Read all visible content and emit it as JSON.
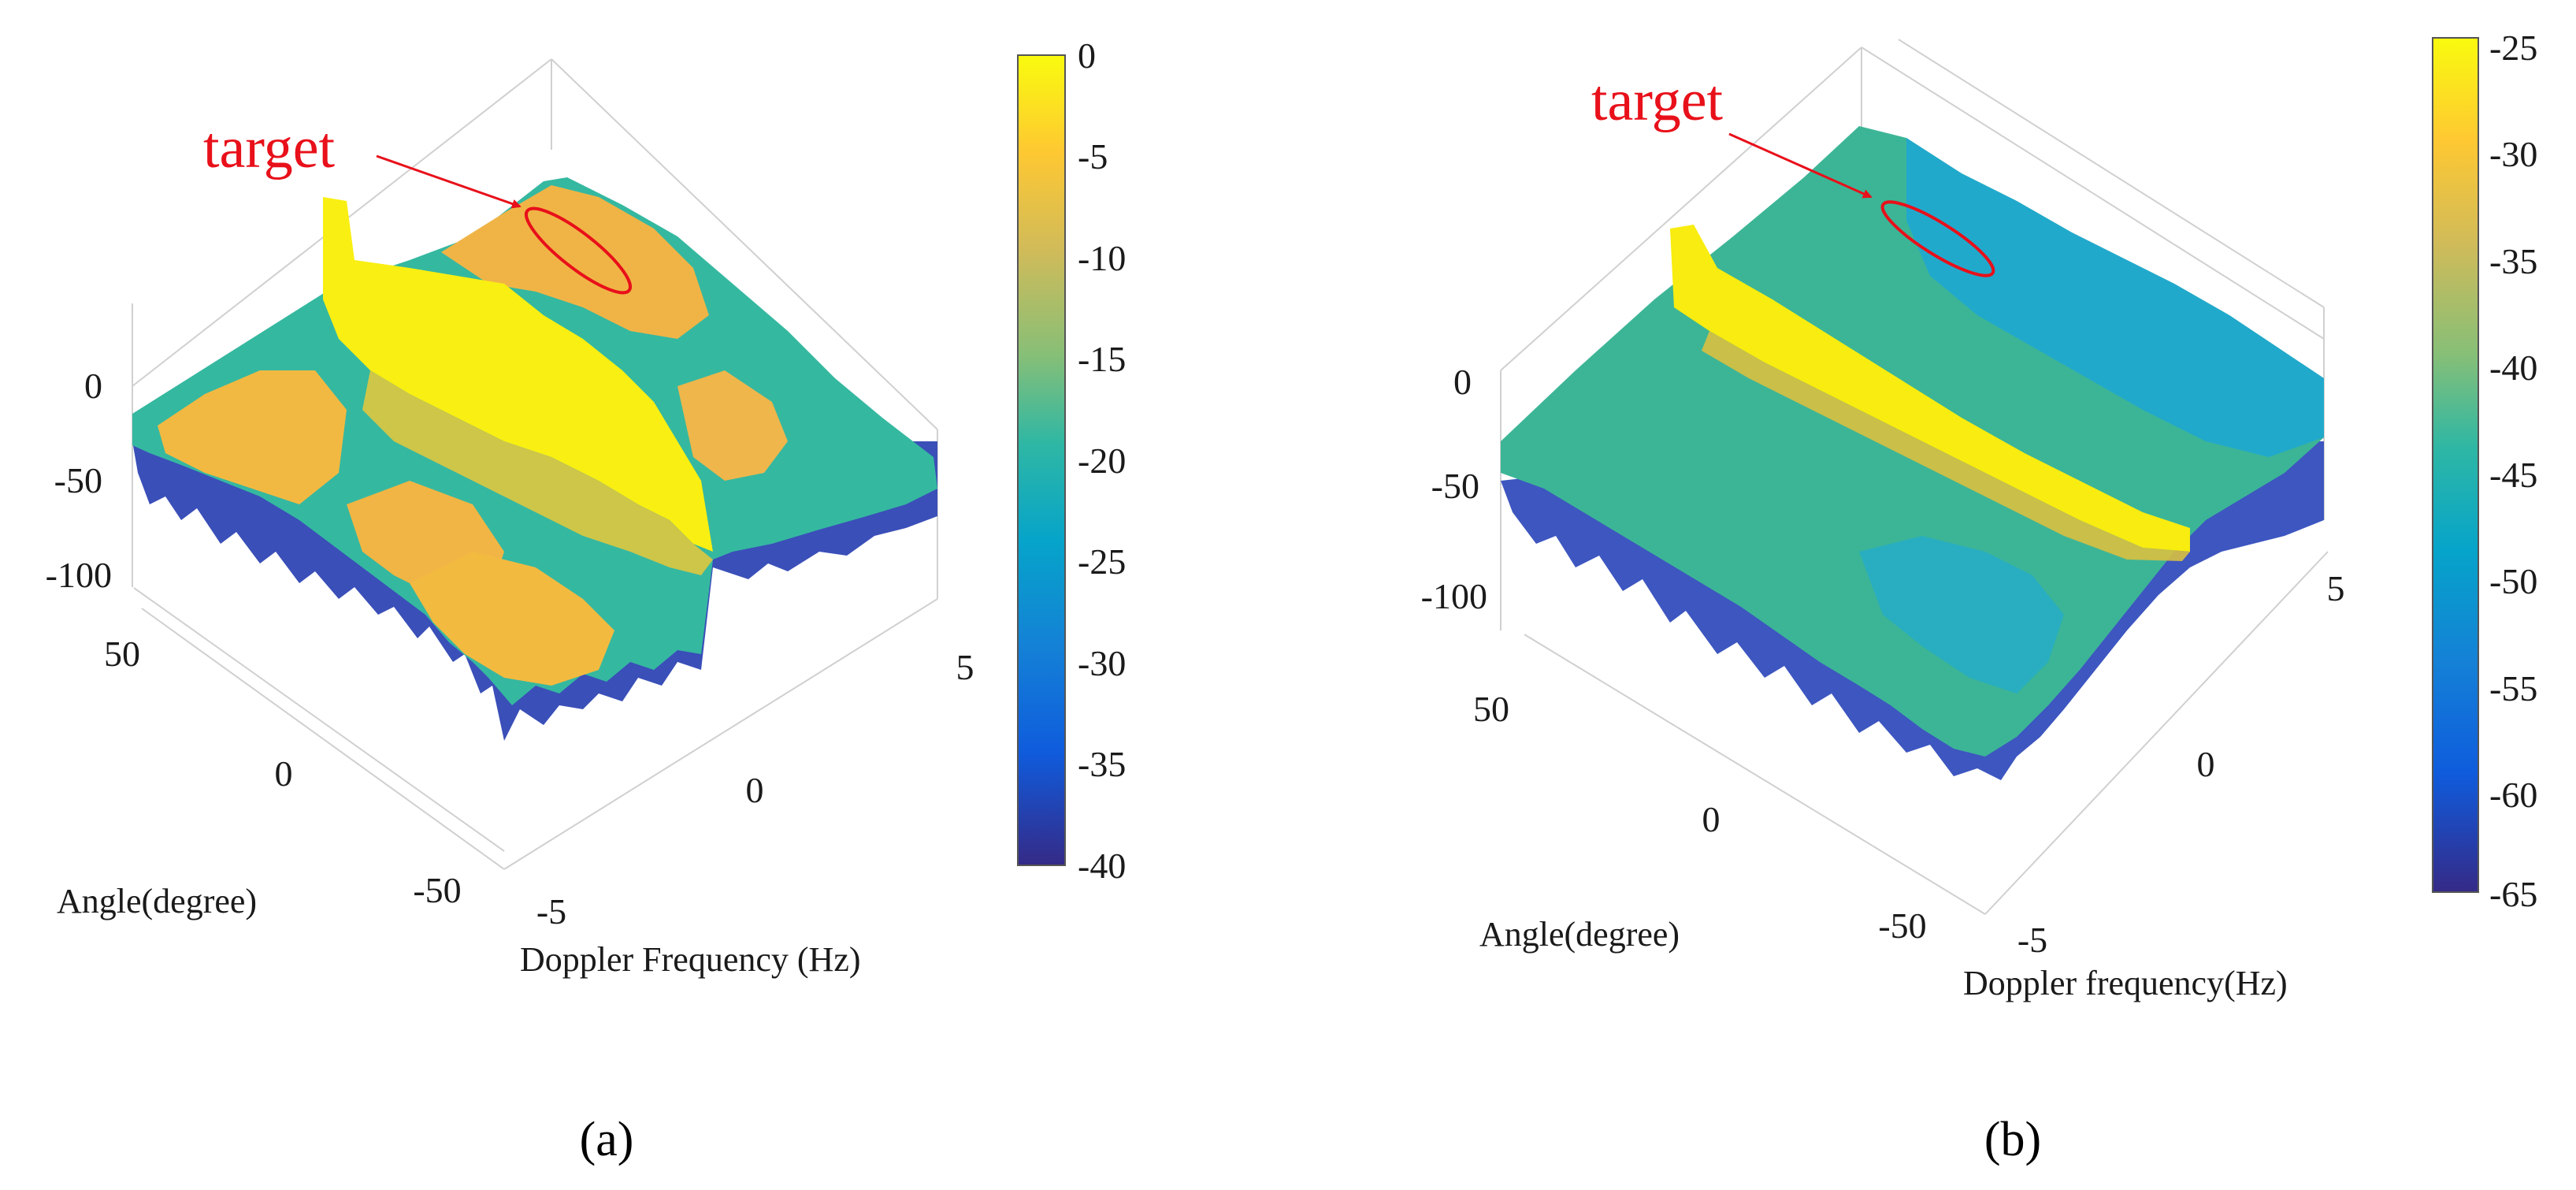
{
  "figure": {
    "panel_labels": [
      "(a)",
      "(b)"
    ]
  },
  "colors": {
    "parula": [
      "#352a87",
      "#0f5cdd",
      "#1481d6",
      "#06a4ca",
      "#2eb7a4",
      "#87bf77",
      "#d1bb59",
      "#fec832",
      "#f9fb0e"
    ],
    "annotation": "#e8101a"
  },
  "chart_data": [
    {
      "type": "surface",
      "panel": "(a)",
      "annotation": "target",
      "xlabel": "Doppler Frequency (Hz)",
      "ylabel": "Angle(degree)",
      "zlabel": "",
      "x_range": [
        -5,
        5
      ],
      "y_range": [
        -50,
        50
      ],
      "z_range": [
        -100,
        0
      ],
      "x_ticks": [
        "-5",
        "0",
        "5"
      ],
      "y_ticks": [
        "50",
        "0",
        "-50"
      ],
      "z_ticks": [
        "0",
        "-50",
        "-100"
      ],
      "colorbar": {
        "range": [
          -40,
          0
        ],
        "ticks": [
          "0",
          "-5",
          "-10",
          "-15",
          "-20",
          "-25",
          "-30",
          "-35",
          "-40"
        ]
      }
    },
    {
      "type": "surface",
      "panel": "(b)",
      "annotation": "target",
      "xlabel": "Doppler frequency(Hz)",
      "ylabel": "Angle(degree)",
      "zlabel": "",
      "x_range": [
        -5,
        5
      ],
      "y_range": [
        -50,
        50
      ],
      "z_range": [
        -100,
        0
      ],
      "x_ticks": [
        "-5",
        "0",
        "5"
      ],
      "y_ticks": [
        "50",
        "0",
        "-50"
      ],
      "z_ticks": [
        "0",
        "-50",
        "-100"
      ],
      "colorbar": {
        "range": [
          -65,
          -25
        ],
        "ticks": [
          "-25",
          "-30",
          "-35",
          "-40",
          "-45",
          "-50",
          "-55",
          "-60",
          "-65"
        ]
      }
    }
  ]
}
